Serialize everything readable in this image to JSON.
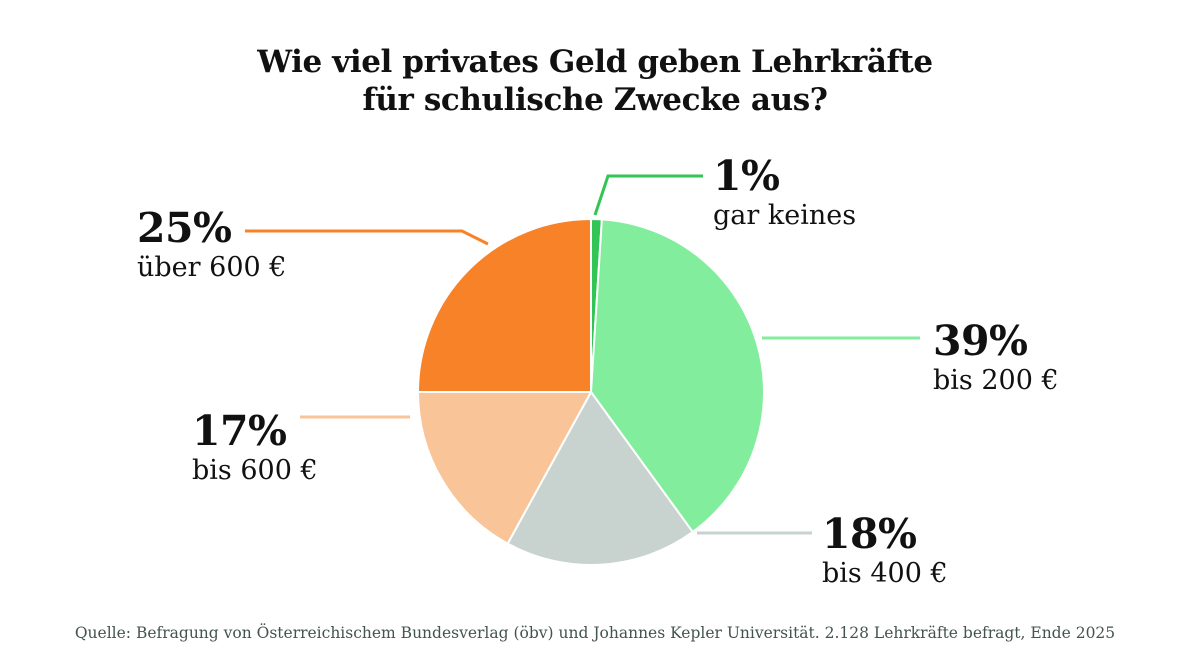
{
  "page": {
    "title_line1": "Wie viel privates Geld geben Lehrkräfte",
    "title_line2": "für schulische Zwecke aus?",
    "source": "Quelle: Befragung von Österreichischem Bundesverlag (öbv) und Johannes Kepler Universität. 2.128 Lehrkräfte befragt, Ende 2025"
  },
  "chart_data": {
    "type": "pie",
    "title": "Wie viel privates Geld geben Lehrkräfte für schulische Zwecke aus?",
    "unit": "%",
    "start_angle_deg": 0,
    "direction": "clockwise",
    "legend_position": "callout-labels",
    "slices": [
      {
        "key": "gar-keines",
        "pct_label": "1%",
        "label": "gar keines",
        "value": 1,
        "color": "#33c456"
      },
      {
        "key": "bis-200",
        "pct_label": "39%",
        "label": "bis 200 €",
        "value": 39,
        "color": "#82ee9d"
      },
      {
        "key": "bis-400",
        "pct_label": "18%",
        "label": "bis 400 €",
        "value": 18,
        "color": "#c8d2ce"
      },
      {
        "key": "bis-600",
        "pct_label": "17%",
        "label": "bis 600 €",
        "value": 17,
        "color": "#f9c498"
      },
      {
        "key": "ueber-600",
        "pct_label": "25%",
        "label": "über 600 €",
        "value": 25,
        "color": "#f78227"
      }
    ]
  }
}
